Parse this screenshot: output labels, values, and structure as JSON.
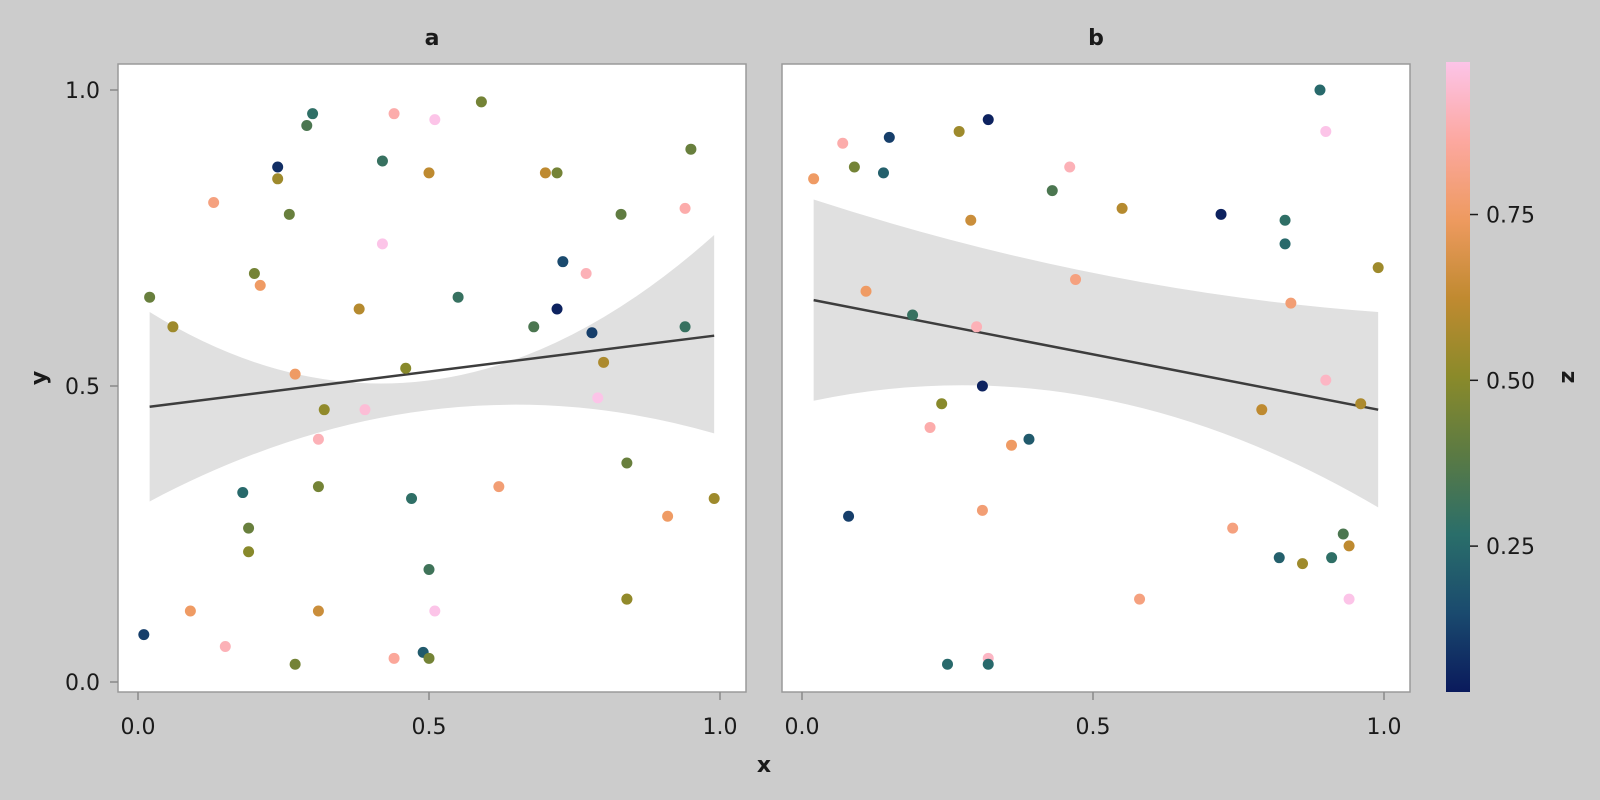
{
  "chart_data": {
    "type": "scatter",
    "xlabel": "x",
    "ylabel": "y",
    "xlim": [
      0.0,
      1.0
    ],
    "ylim": [
      0.0,
      1.0
    ],
    "x_ticks": [
      "0.0",
      "0.5",
      "1.0"
    ],
    "y_ticks": [
      "0.0",
      "0.5",
      "1.0"
    ],
    "grid": false,
    "colorbar": {
      "label": "z",
      "ticks": [
        "0.25",
        "0.50",
        "0.75"
      ],
      "range": [
        0.03,
        0.98
      ],
      "colormap": [
        "#0a1a5c",
        "#1a4a6e",
        "#2a6e6a",
        "#5a7a44",
        "#8a8a2a",
        "#c08a30",
        "#ee9a60",
        "#fca8a0",
        "#fcc4e8"
      ]
    },
    "panels": [
      {
        "title": "a",
        "fit": {
          "x": [
            0.02,
            0.99
          ],
          "y": [
            0.465,
            0.585
          ],
          "band_lower": [
            0.305,
            0.42
          ],
          "band_upper": [
            0.625,
            0.755
          ],
          "band_mid": [
            0.46,
            0.51
          ]
        },
        "points": [
          {
            "x": 0.29,
            "y": 0.94,
            "z": 0.35
          },
          {
            "x": 0.3,
            "y": 0.96,
            "z": 0.28
          },
          {
            "x": 0.24,
            "y": 0.87,
            "z": 0.08
          },
          {
            "x": 0.24,
            "y": 0.85,
            "z": 0.55
          },
          {
            "x": 0.13,
            "y": 0.81,
            "z": 0.8
          },
          {
            "x": 0.26,
            "y": 0.79,
            "z": 0.42
          },
          {
            "x": 0.44,
            "y": 0.96,
            "z": 0.88
          },
          {
            "x": 0.51,
            "y": 0.95,
            "z": 0.98
          },
          {
            "x": 0.59,
            "y": 0.98,
            "z": 0.45
          },
          {
            "x": 0.42,
            "y": 0.88,
            "z": 0.3
          },
          {
            "x": 0.5,
            "y": 0.86,
            "z": 0.62
          },
          {
            "x": 0.7,
            "y": 0.86,
            "z": 0.62
          },
          {
            "x": 0.72,
            "y": 0.86,
            "z": 0.45
          },
          {
            "x": 0.95,
            "y": 0.9,
            "z": 0.42
          },
          {
            "x": 0.83,
            "y": 0.79,
            "z": 0.4
          },
          {
            "x": 0.94,
            "y": 0.8,
            "z": 0.88
          },
          {
            "x": 0.42,
            "y": 0.74,
            "z": 0.98
          },
          {
            "x": 0.73,
            "y": 0.71,
            "z": 0.15
          },
          {
            "x": 0.77,
            "y": 0.69,
            "z": 0.9
          },
          {
            "x": 0.2,
            "y": 0.69,
            "z": 0.45
          },
          {
            "x": 0.21,
            "y": 0.67,
            "z": 0.75
          },
          {
            "x": 0.02,
            "y": 0.65,
            "z": 0.42
          },
          {
            "x": 0.55,
            "y": 0.65,
            "z": 0.3
          },
          {
            "x": 0.38,
            "y": 0.63,
            "z": 0.6
          },
          {
            "x": 0.72,
            "y": 0.63,
            "z": 0.05
          },
          {
            "x": 0.06,
            "y": 0.6,
            "z": 0.55
          },
          {
            "x": 0.68,
            "y": 0.6,
            "z": 0.35
          },
          {
            "x": 0.94,
            "y": 0.6,
            "z": 0.3
          },
          {
            "x": 0.78,
            "y": 0.59,
            "z": 0.12
          },
          {
            "x": 0.8,
            "y": 0.54,
            "z": 0.58
          },
          {
            "x": 0.46,
            "y": 0.53,
            "z": 0.5
          },
          {
            "x": 0.27,
            "y": 0.52,
            "z": 0.75
          },
          {
            "x": 0.79,
            "y": 0.48,
            "z": 0.98
          },
          {
            "x": 0.32,
            "y": 0.46,
            "z": 0.52
          },
          {
            "x": 0.39,
            "y": 0.46,
            "z": 0.95
          },
          {
            "x": 0.31,
            "y": 0.41,
            "z": 0.9
          },
          {
            "x": 0.84,
            "y": 0.37,
            "z": 0.42
          },
          {
            "x": 0.62,
            "y": 0.33,
            "z": 0.78
          },
          {
            "x": 0.31,
            "y": 0.33,
            "z": 0.45
          },
          {
            "x": 0.18,
            "y": 0.32,
            "z": 0.25
          },
          {
            "x": 0.47,
            "y": 0.31,
            "z": 0.28
          },
          {
            "x": 0.99,
            "y": 0.31,
            "z": 0.55
          },
          {
            "x": 0.91,
            "y": 0.28,
            "z": 0.75
          },
          {
            "x": 0.19,
            "y": 0.26,
            "z": 0.42
          },
          {
            "x": 0.19,
            "y": 0.22,
            "z": 0.5
          },
          {
            "x": 0.5,
            "y": 0.19,
            "z": 0.32
          },
          {
            "x": 0.84,
            "y": 0.14,
            "z": 0.62
          },
          {
            "x": 0.84,
            "y": 0.14,
            "z": 0.52
          },
          {
            "x": 0.09,
            "y": 0.12,
            "z": 0.75
          },
          {
            "x": 0.31,
            "y": 0.12,
            "z": 0.65
          },
          {
            "x": 0.51,
            "y": 0.12,
            "z": 0.98
          },
          {
            "x": 0.15,
            "y": 0.06,
            "z": 0.9
          },
          {
            "x": 0.01,
            "y": 0.08,
            "z": 0.12
          },
          {
            "x": 0.49,
            "y": 0.05,
            "z": 0.2
          },
          {
            "x": 0.5,
            "y": 0.04,
            "z": 0.45
          },
          {
            "x": 0.44,
            "y": 0.04,
            "z": 0.85
          },
          {
            "x": 0.27,
            "y": 0.03,
            "z": 0.45
          }
        ]
      },
      {
        "title": "b",
        "fit": {
          "x": [
            0.02,
            0.99
          ],
          "y": [
            0.645,
            0.46
          ],
          "band_lower": [
            0.475,
            0.295
          ],
          "band_upper": [
            0.815,
            0.625
          ],
          "band_mid": [
            0.48,
            0.69
          ]
        },
        "points": [
          {
            "x": 0.89,
            "y": 1.0,
            "z": 0.25
          },
          {
            "x": 0.32,
            "y": 0.95,
            "z": 0.05
          },
          {
            "x": 0.15,
            "y": 0.92,
            "z": 0.12
          },
          {
            "x": 0.27,
            "y": 0.93,
            "z": 0.55
          },
          {
            "x": 0.07,
            "y": 0.91,
            "z": 0.88
          },
          {
            "x": 0.9,
            "y": 0.93,
            "z": 0.98
          },
          {
            "x": 0.09,
            "y": 0.87,
            "z": 0.45
          },
          {
            "x": 0.46,
            "y": 0.87,
            "z": 0.9
          },
          {
            "x": 0.14,
            "y": 0.86,
            "z": 0.22
          },
          {
            "x": 0.02,
            "y": 0.85,
            "z": 0.75
          },
          {
            "x": 0.43,
            "y": 0.83,
            "z": 0.35
          },
          {
            "x": 0.55,
            "y": 0.8,
            "z": 0.6
          },
          {
            "x": 0.72,
            "y": 0.79,
            "z": 0.05
          },
          {
            "x": 0.83,
            "y": 0.78,
            "z": 0.28
          },
          {
            "x": 0.29,
            "y": 0.78,
            "z": 0.65
          },
          {
            "x": 0.83,
            "y": 0.74,
            "z": 0.25
          },
          {
            "x": 0.99,
            "y": 0.7,
            "z": 0.55
          },
          {
            "x": 0.47,
            "y": 0.68,
            "z": 0.8
          },
          {
            "x": 0.11,
            "y": 0.66,
            "z": 0.75
          },
          {
            "x": 0.84,
            "y": 0.64,
            "z": 0.78
          },
          {
            "x": 0.19,
            "y": 0.62,
            "z": 0.3
          },
          {
            "x": 0.3,
            "y": 0.6,
            "z": 0.9
          },
          {
            "x": 0.9,
            "y": 0.51,
            "z": 0.92
          },
          {
            "x": 0.31,
            "y": 0.5,
            "z": 0.05
          },
          {
            "x": 0.24,
            "y": 0.47,
            "z": 0.5
          },
          {
            "x": 0.96,
            "y": 0.47,
            "z": 0.58
          },
          {
            "x": 0.79,
            "y": 0.46,
            "z": 0.62
          },
          {
            "x": 0.22,
            "y": 0.43,
            "z": 0.88
          },
          {
            "x": 0.39,
            "y": 0.41,
            "z": 0.2
          },
          {
            "x": 0.36,
            "y": 0.4,
            "z": 0.75
          },
          {
            "x": 0.31,
            "y": 0.29,
            "z": 0.78
          },
          {
            "x": 0.08,
            "y": 0.28,
            "z": 0.12
          },
          {
            "x": 0.74,
            "y": 0.26,
            "z": 0.8
          },
          {
            "x": 0.93,
            "y": 0.25,
            "z": 0.35
          },
          {
            "x": 0.94,
            "y": 0.23,
            "z": 0.62
          },
          {
            "x": 0.91,
            "y": 0.21,
            "z": 0.28
          },
          {
            "x": 0.82,
            "y": 0.21,
            "z": 0.22
          },
          {
            "x": 0.86,
            "y": 0.2,
            "z": 0.55
          },
          {
            "x": 0.94,
            "y": 0.14,
            "z": 0.98
          },
          {
            "x": 0.58,
            "y": 0.14,
            "z": 0.8
          },
          {
            "x": 0.32,
            "y": 0.04,
            "z": 0.92
          },
          {
            "x": 0.25,
            "y": 0.03,
            "z": 0.25
          },
          {
            "x": 0.32,
            "y": 0.03,
            "z": 0.25
          }
        ]
      }
    ]
  }
}
